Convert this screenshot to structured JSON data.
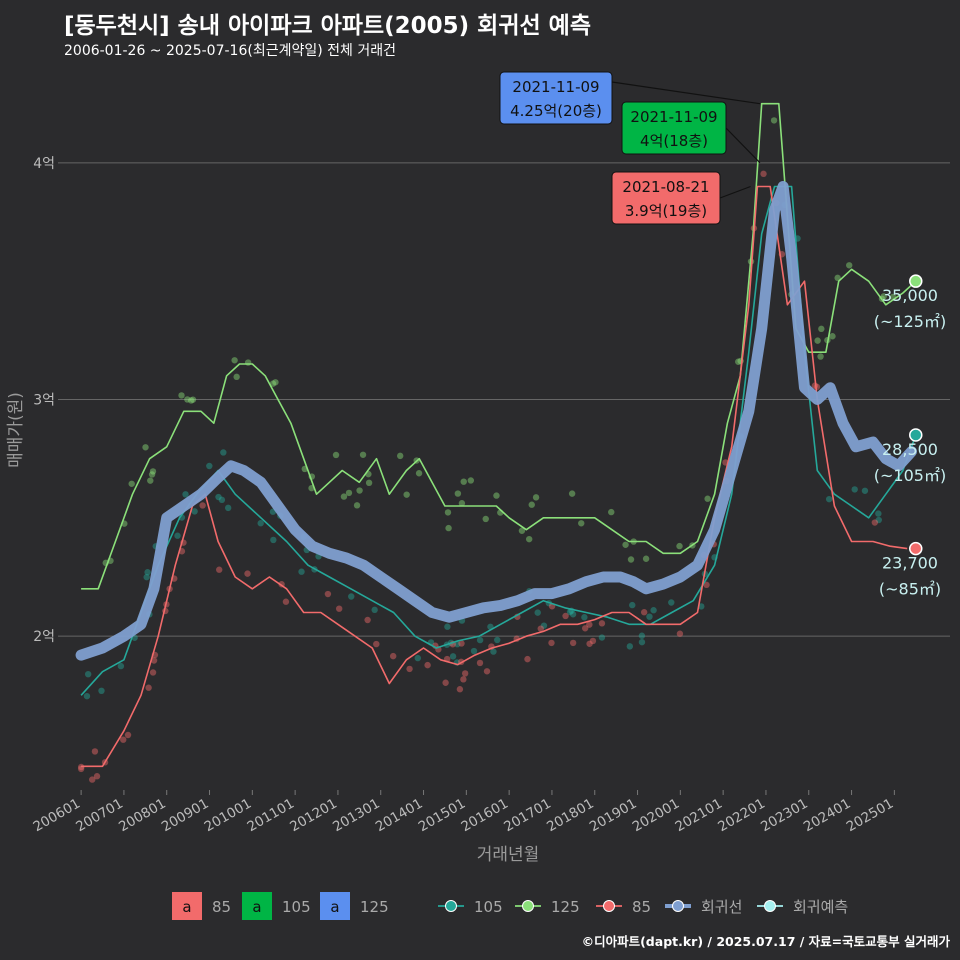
{
  "header": {
    "title": "[동두천시] 송내 아이파크 아파트(2005) 회귀선 예측",
    "subtitle": "2006-01-26 ~ 2025-07-16(최근계약일) 전체 거래건"
  },
  "footer": {
    "credit": "©디아파트(dapt.kr) / 2025.07.17 / 자료=국토교통부 실거래가"
  },
  "colors": {
    "s85": "#f26b6b",
    "s105": "#25a89a",
    "s125": "#8be07a",
    "reg": "#7f9fd0",
    "pred": "#a6f0f0",
    "grid": "#666666",
    "lab85": "#f26b6b",
    "lab105": "#00b545",
    "lab125": "#5b8fef"
  },
  "chart_data": {
    "type": "line",
    "xlabel": "거래년월",
    "ylabel": "매매가(원)",
    "x_ticks": [
      "200601",
      "200701",
      "200801",
      "200901",
      "201001",
      "201101",
      "201201",
      "201301",
      "201401",
      "201501",
      "201601",
      "201701",
      "201801",
      "201901",
      "202001",
      "202101",
      "202201",
      "202301",
      "202401",
      "202501"
    ],
    "y_ticks": [
      {
        "value": 2.0,
        "label": "2억"
      },
      {
        "value": 3.0,
        "label": "3억"
      },
      {
        "value": 4.0,
        "label": "4억"
      }
    ],
    "ylim": [
      1.35,
      4.35
    ],
    "xlim": [
      2005.6,
      2026.3
    ],
    "series": [
      {
        "name": "105",
        "key": "s105",
        "points": [
          [
            2006.0,
            1.75
          ],
          [
            2006.5,
            1.85
          ],
          [
            2007.0,
            1.9
          ],
          [
            2007.4,
            2.1
          ],
          [
            2007.8,
            2.3
          ],
          [
            2008.3,
            2.5
          ],
          [
            2008.7,
            2.6
          ],
          [
            2009.2,
            2.7
          ],
          [
            2009.6,
            2.6
          ],
          [
            2010.2,
            2.5
          ],
          [
            2010.8,
            2.4
          ],
          [
            2011.3,
            2.3
          ],
          [
            2011.8,
            2.25
          ],
          [
            2012.3,
            2.2
          ],
          [
            2012.8,
            2.15
          ],
          [
            2013.3,
            2.1
          ],
          [
            2013.8,
            2.0
          ],
          [
            2014.3,
            1.95
          ],
          [
            2014.8,
            1.98
          ],
          [
            2015.3,
            2.0
          ],
          [
            2015.8,
            2.05
          ],
          [
            2016.3,
            2.1
          ],
          [
            2016.8,
            2.15
          ],
          [
            2017.3,
            2.12
          ],
          [
            2017.8,
            2.1
          ],
          [
            2018.3,
            2.08
          ],
          [
            2018.8,
            2.05
          ],
          [
            2019.3,
            2.05
          ],
          [
            2019.8,
            2.1
          ],
          [
            2020.3,
            2.15
          ],
          [
            2020.8,
            2.3
          ],
          [
            2021.2,
            2.6
          ],
          [
            2021.6,
            3.2
          ],
          [
            2021.9,
            3.7
          ],
          [
            2022.2,
            3.9
          ],
          [
            2022.6,
            3.9
          ],
          [
            2022.9,
            3.2
          ],
          [
            2023.2,
            2.7
          ],
          [
            2023.6,
            2.6
          ],
          [
            2024.0,
            2.55
          ],
          [
            2024.4,
            2.5
          ],
          [
            2024.8,
            2.6
          ],
          [
            2025.2,
            2.7
          ],
          [
            2025.5,
            2.85
          ]
        ]
      },
      {
        "name": "125",
        "key": "s125",
        "points": [
          [
            2006.0,
            2.2
          ],
          [
            2006.4,
            2.2
          ],
          [
            2006.8,
            2.4
          ],
          [
            2007.2,
            2.6
          ],
          [
            2007.6,
            2.75
          ],
          [
            2008.0,
            2.8
          ],
          [
            2008.4,
            2.95
          ],
          [
            2008.8,
            2.95
          ],
          [
            2009.1,
            2.9
          ],
          [
            2009.4,
            3.1
          ],
          [
            2009.7,
            3.15
          ],
          [
            2010.0,
            3.15
          ],
          [
            2010.3,
            3.1
          ],
          [
            2010.6,
            3.0
          ],
          [
            2010.9,
            2.9
          ],
          [
            2011.2,
            2.75
          ],
          [
            2011.5,
            2.6
          ],
          [
            2011.8,
            2.65
          ],
          [
            2012.1,
            2.7
          ],
          [
            2012.5,
            2.65
          ],
          [
            2012.9,
            2.75
          ],
          [
            2013.2,
            2.6
          ],
          [
            2013.6,
            2.7
          ],
          [
            2013.9,
            2.75
          ],
          [
            2014.5,
            2.55
          ],
          [
            2014.9,
            2.55
          ],
          [
            2015.3,
            2.55
          ],
          [
            2015.7,
            2.55
          ],
          [
            2016.0,
            2.5
          ],
          [
            2016.4,
            2.45
          ],
          [
            2016.8,
            2.5
          ],
          [
            2017.2,
            2.5
          ],
          [
            2017.6,
            2.5
          ],
          [
            2018.0,
            2.5
          ],
          [
            2018.4,
            2.45
          ],
          [
            2018.8,
            2.4
          ],
          [
            2019.2,
            2.4
          ],
          [
            2019.6,
            2.35
          ],
          [
            2020.0,
            2.35
          ],
          [
            2020.4,
            2.4
          ],
          [
            2020.8,
            2.6
          ],
          [
            2021.1,
            2.9
          ],
          [
            2021.4,
            3.1
          ],
          [
            2021.7,
            3.7
          ],
          [
            2021.9,
            4.25
          ],
          [
            2022.3,
            4.25
          ],
          [
            2022.7,
            3.3
          ],
          [
            2023.0,
            3.2
          ],
          [
            2023.4,
            3.2
          ],
          [
            2023.7,
            3.5
          ],
          [
            2024.0,
            3.55
          ],
          [
            2024.4,
            3.5
          ],
          [
            2024.8,
            3.4
          ],
          [
            2025.2,
            3.45
          ],
          [
            2025.5,
            3.5
          ]
        ]
      },
      {
        "name": "85",
        "key": "s85",
        "points": [
          [
            2006.0,
            1.45
          ],
          [
            2006.5,
            1.45
          ],
          [
            2007.0,
            1.6
          ],
          [
            2007.4,
            1.75
          ],
          [
            2007.8,
            2.0
          ],
          [
            2008.2,
            2.3
          ],
          [
            2008.6,
            2.55
          ],
          [
            2008.9,
            2.6
          ],
          [
            2009.2,
            2.4
          ],
          [
            2009.6,
            2.25
          ],
          [
            2010.0,
            2.2
          ],
          [
            2010.4,
            2.25
          ],
          [
            2010.8,
            2.2
          ],
          [
            2011.2,
            2.1
          ],
          [
            2011.6,
            2.1
          ],
          [
            2012.0,
            2.05
          ],
          [
            2012.4,
            2.0
          ],
          [
            2012.8,
            1.95
          ],
          [
            2013.2,
            1.8
          ],
          [
            2013.6,
            1.9
          ],
          [
            2014.0,
            1.95
          ],
          [
            2014.4,
            1.9
          ],
          [
            2014.8,
            1.88
          ],
          [
            2015.2,
            1.92
          ],
          [
            2015.6,
            1.95
          ],
          [
            2016.0,
            1.97
          ],
          [
            2016.4,
            2.0
          ],
          [
            2016.8,
            2.02
          ],
          [
            2017.2,
            2.05
          ],
          [
            2017.6,
            2.05
          ],
          [
            2018.0,
            2.07
          ],
          [
            2018.4,
            2.1
          ],
          [
            2018.8,
            2.1
          ],
          [
            2019.2,
            2.05
          ],
          [
            2019.6,
            2.05
          ],
          [
            2020.0,
            2.05
          ],
          [
            2020.4,
            2.1
          ],
          [
            2020.8,
            2.5
          ],
          [
            2021.2,
            2.8
          ],
          [
            2021.6,
            3.4
          ],
          [
            2021.8,
            3.9
          ],
          [
            2022.1,
            3.9
          ],
          [
            2022.5,
            3.4
          ],
          [
            2022.9,
            3.5
          ],
          [
            2023.2,
            3.0
          ],
          [
            2023.6,
            2.55
          ],
          [
            2024.0,
            2.4
          ],
          [
            2024.5,
            2.4
          ],
          [
            2024.9,
            2.38
          ],
          [
            2025.3,
            2.37
          ]
        ]
      },
      {
        "name": "회귀선",
        "key": "reg",
        "points": [
          [
            2006.0,
            1.92
          ],
          [
            2006.5,
            1.95
          ],
          [
            2007.0,
            2.0
          ],
          [
            2007.4,
            2.05
          ],
          [
            2007.7,
            2.2
          ],
          [
            2008.0,
            2.5
          ],
          [
            2008.4,
            2.55
          ],
          [
            2008.8,
            2.6
          ],
          [
            2009.2,
            2.67
          ],
          [
            2009.5,
            2.72
          ],
          [
            2009.8,
            2.7
          ],
          [
            2010.2,
            2.65
          ],
          [
            2010.6,
            2.55
          ],
          [
            2011.0,
            2.45
          ],
          [
            2011.4,
            2.38
          ],
          [
            2011.8,
            2.35
          ],
          [
            2012.2,
            2.33
          ],
          [
            2012.6,
            2.3
          ],
          [
            2013.0,
            2.25
          ],
          [
            2013.4,
            2.2
          ],
          [
            2013.8,
            2.15
          ],
          [
            2014.2,
            2.1
          ],
          [
            2014.6,
            2.08
          ],
          [
            2015.0,
            2.1
          ],
          [
            2015.4,
            2.12
          ],
          [
            2015.8,
            2.13
          ],
          [
            2016.2,
            2.15
          ],
          [
            2016.6,
            2.18
          ],
          [
            2017.0,
            2.18
          ],
          [
            2017.4,
            2.2
          ],
          [
            2017.8,
            2.23
          ],
          [
            2018.2,
            2.25
          ],
          [
            2018.6,
            2.25
          ],
          [
            2018.9,
            2.23
          ],
          [
            2019.2,
            2.2
          ],
          [
            2019.6,
            2.22
          ],
          [
            2020.0,
            2.25
          ],
          [
            2020.4,
            2.3
          ],
          [
            2020.8,
            2.45
          ],
          [
            2021.2,
            2.7
          ],
          [
            2021.6,
            2.95
          ],
          [
            2021.9,
            3.3
          ],
          [
            2022.2,
            3.8
          ],
          [
            2022.4,
            3.9
          ],
          [
            2022.6,
            3.6
          ],
          [
            2022.9,
            3.05
          ],
          [
            2023.2,
            3.0
          ],
          [
            2023.5,
            3.05
          ],
          [
            2023.8,
            2.9
          ],
          [
            2024.1,
            2.8
          ],
          [
            2024.5,
            2.82
          ],
          [
            2024.8,
            2.75
          ],
          [
            2025.1,
            2.72
          ],
          [
            2025.4,
            2.78
          ]
        ]
      }
    ],
    "end_points": [
      {
        "series": "125",
        "key": "s125",
        "x": 2025.5,
        "y": 3.5,
        "value": "35,000",
        "area": "(~125㎡)"
      },
      {
        "series": "105",
        "key": "s105",
        "x": 2025.5,
        "y": 2.85,
        "value": "28,500",
        "area": "(~105㎡)"
      },
      {
        "series": "85",
        "key": "s85",
        "x": 2025.5,
        "y": 2.37,
        "value": "23,700",
        "area": "(~85㎡)"
      }
    ],
    "annotations": [
      {
        "date": "2021-11-09",
        "text": "4.25억(20층)",
        "key": "lab125",
        "x": 2021.86,
        "y": 4.25
      },
      {
        "date": "2021-11-09",
        "text": "4억(18층)",
        "key": "lab105",
        "x": 2021.86,
        "y": 4.0
      },
      {
        "date": "2021-08-21",
        "text": "3.9억(19층)",
        "key": "lab85",
        "x": 2021.64,
        "y": 3.9
      }
    ],
    "legend": {
      "placement": "bottom",
      "label_items": [
        {
          "glyph": "a",
          "text": "85",
          "key": "lab85"
        },
        {
          "glyph": "a",
          "text": "105",
          "key": "lab105"
        },
        {
          "glyph": "a",
          "text": "125",
          "key": "lab125"
        }
      ],
      "line_items": [
        {
          "text": "105",
          "key": "s105"
        },
        {
          "text": "125",
          "key": "s125"
        },
        {
          "text": "85",
          "key": "s85"
        },
        {
          "text": "회귀선",
          "key": "reg"
        },
        {
          "text": "회귀예측",
          "key": "pred"
        }
      ]
    }
  }
}
